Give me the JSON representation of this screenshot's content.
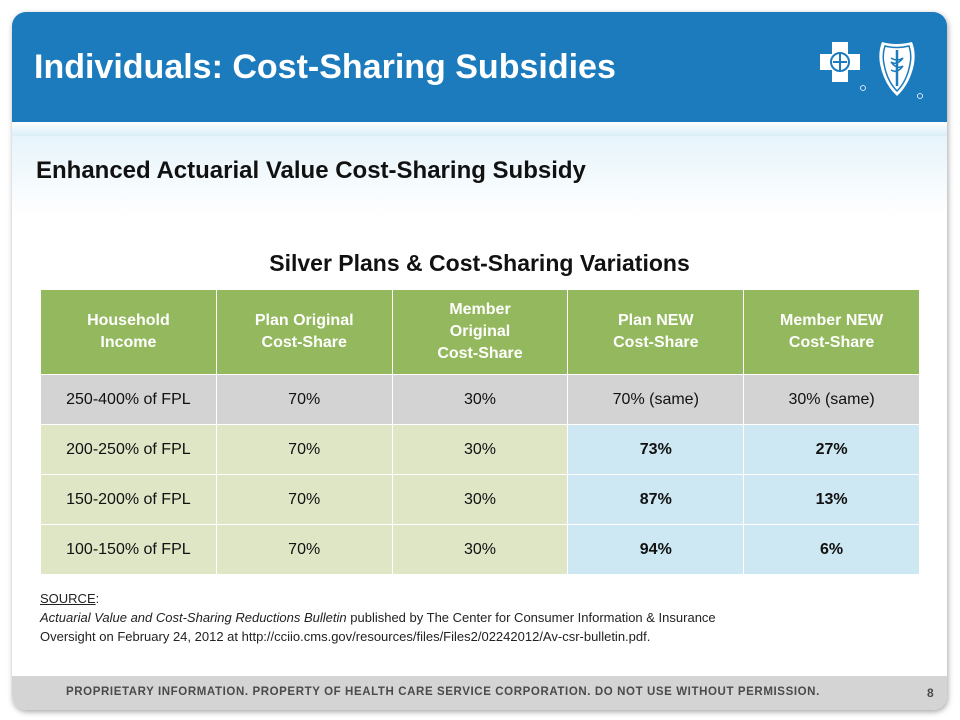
{
  "header": {
    "title": "Individuals: Cost-Sharing Subsidies",
    "logos": [
      "blue-cross-logo",
      "blue-shield-logo"
    ],
    "color": "#1b7bbd"
  },
  "subtitle": "Enhanced Actuarial Value Cost-Sharing Subsidy",
  "table": {
    "title": "Silver Plans & Cost-Sharing Variations",
    "header_color": "#94b85d",
    "highlight_color": "#cde8f3",
    "columns": [
      [
        "Household",
        "Income"
      ],
      [
        "Plan Original",
        "Cost-Share"
      ],
      [
        "Member",
        "Original",
        "Cost-Share"
      ],
      [
        "Plan NEW",
        "Cost-Share"
      ],
      [
        "Member NEW",
        "Cost-Share"
      ]
    ],
    "rows": [
      [
        "250-400% of FPL",
        "70%",
        "30%",
        "70% (same)",
        "30% (same)"
      ],
      [
        "200-250% of FPL",
        "70%",
        "30%",
        "73%",
        "27%"
      ],
      [
        "150-200% of FPL",
        "70%",
        "30%",
        "87%",
        "13%"
      ],
      [
        "100-150% of FPL",
        "70%",
        "30%",
        "94%",
        "6%"
      ]
    ]
  },
  "source": {
    "label": "SOURCE",
    "colon": ":",
    "title": "Actuarial Value and Cost-Sharing Reductions Bulletin",
    "text": " published by The Center for Consumer Information & Insurance Oversight on February 24, 2012 at http://cciio.cms.gov/resources/files/Files2/02242012/Av-csr-bulletin.pdf."
  },
  "footer": {
    "text": "PROPRIETARY INFORMATION. PROPERTY OF HEALTH CARE SERVICE CORPORATION. DO NOT USE WITHOUT PERMISSION.",
    "page_number": "8"
  }
}
